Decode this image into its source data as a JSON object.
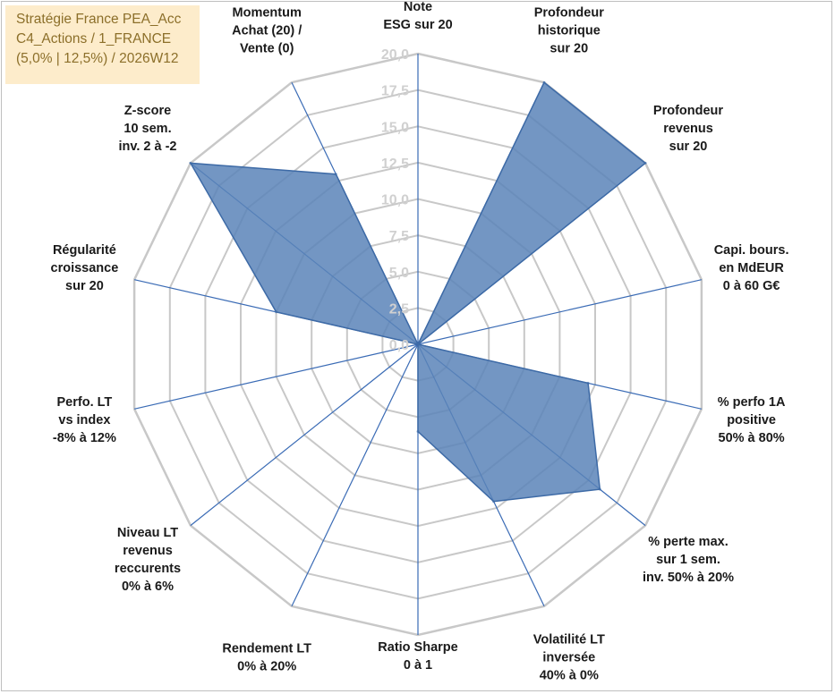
{
  "caption": {
    "line1": "Stratégie France PEA_Acc",
    "line2": "C4_Actions / 1_FRANCE",
    "line3": "(5,0% | 12,5%) / 2026W12"
  },
  "colors": {
    "grid": "#c8c8c8",
    "spoke": "#3a6bb5",
    "fill": "#5b84b8",
    "stroke": "#3d6aa6",
    "caption_bg": "#fdeccb",
    "caption_text": "#8c6f2a"
  },
  "chart_data": {
    "type": "radar",
    "title": "",
    "rmin": 0,
    "rmax": 20,
    "ticks": [
      "0,0",
      "2,5",
      "5,0",
      "7,5",
      "10,0",
      "12,5",
      "15,0",
      "17,5",
      "20,0"
    ],
    "categories": [
      [
        "Note",
        "ESG sur 20"
      ],
      [
        "Profondeur",
        "historique",
        "sur 20"
      ],
      [
        "Profondeur",
        "revenus",
        "sur 20"
      ],
      [
        "Capi. bours.",
        "en MdEUR",
        "0 à 60 G€"
      ],
      [
        "% perfo 1A",
        "positive",
        "50% à 80%"
      ],
      [
        "% perte max.",
        "sur 1 sem.",
        "inv. 50% à 20%"
      ],
      [
        "Volatilité LT",
        "inversée",
        "40% à 0%"
      ],
      [
        "Ratio Sharpe",
        "0 à 1"
      ],
      [
        "Rendement LT",
        "0% à 20%"
      ],
      [
        "Niveau LT",
        "revenus",
        "reccurents",
        "0% à 6%"
      ],
      [
        "Perfo. LT",
        "vs index",
        "-8% à 12%"
      ],
      [
        "Régularité",
        "croissance",
        "sur 20"
      ],
      [
        "Z-score",
        "10 sem.",
        "inv. 2 à -2"
      ],
      [
        "Momentum",
        "Achat (20) /",
        "Vente (0)"
      ]
    ],
    "series": [
      {
        "name": "Stratégie France PEA_Acc",
        "values": [
          0,
          20,
          20,
          0,
          12,
          16,
          12,
          6,
          0,
          0,
          0,
          10,
          20,
          13
        ]
      }
    ]
  }
}
